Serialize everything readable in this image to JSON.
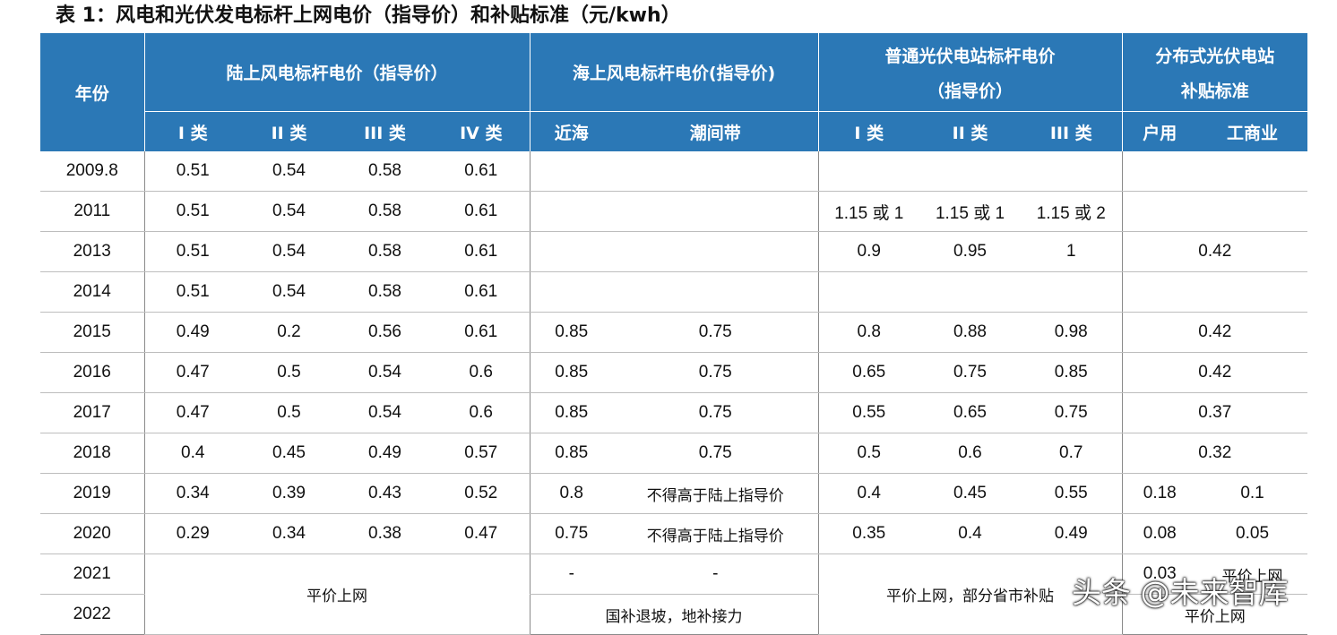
{
  "title": "表 1：风电和光伏发电标杆上网电价（指导价）和补贴标准（元/kwh）",
  "header": {
    "year": "年份",
    "onshore_wind": "陆上风电标杆电价（指导价）",
    "offshore_wind": "海上风电标杆电价(指导价)",
    "pv_line1": "普通光伏电站标杆电价",
    "pv_line2": "（指导价）",
    "dist_line1": "分布式光伏电站",
    "dist_line2": "补贴标准",
    "sub": [
      "I 类",
      "II 类",
      "III 类",
      "IV 类",
      "近海",
      "潮间带",
      "I 类",
      "II 类",
      "III 类",
      "户用",
      "工商业"
    ]
  },
  "rows": [
    [
      "2009.8",
      "0.51",
      "0.54",
      "0.58",
      "0.61",
      "",
      "",
      "",
      "",
      "",
      ""
    ],
    [
      "2011",
      "0.51",
      "0.54",
      "0.58",
      "0.61",
      "",
      "",
      "1.15 或 1",
      "1.15 或 1",
      "1.15 或 2",
      ""
    ],
    [
      "2013",
      "0.51",
      "0.54",
      "0.58",
      "0.61",
      "",
      "",
      "0.9",
      "0.95",
      "1",
      "0.42"
    ],
    [
      "2014",
      "0.51",
      "0.54",
      "0.58",
      "0.61",
      "",
      "",
      "",
      "",
      "",
      ""
    ],
    [
      "2015",
      "0.49",
      "0.2",
      "0.56",
      "0.61",
      "0.85",
      "0.75",
      "0.8",
      "0.88",
      "0.98",
      "0.42"
    ],
    [
      "2016",
      "0.47",
      "0.5",
      "0.54",
      "0.6",
      "0.85",
      "0.75",
      "0.65",
      "0.75",
      "0.85",
      "0.42"
    ],
    [
      "2017",
      "0.47",
      "0.5",
      "0.54",
      "0.6",
      "0.85",
      "0.75",
      "0.55",
      "0.65",
      "0.75",
      "0.37"
    ],
    [
      "2018",
      "0.4",
      "0.45",
      "0.49",
      "0.57",
      "0.85",
      "0.75",
      "0.5",
      "0.6",
      "0.7",
      "0.32"
    ],
    [
      "2019",
      "0.34",
      "0.39",
      "0.43",
      "0.52",
      "0.8",
      "不得高于陆上指导价",
      "0.4",
      "0.45",
      "0.55",
      "0.18",
      "0.1"
    ],
    [
      "2020",
      "0.29",
      "0.34",
      "0.38",
      "0.47",
      "0.75",
      "不得高于陆上指导价",
      "0.35",
      "0.4",
      "0.49",
      "0.08",
      "0.05"
    ]
  ],
  "row_2021": {
    "year": "2021",
    "offshore_near": "-",
    "offshore_tidal": "-",
    "dist_household": "0.03",
    "dist_commercial": "平价上网"
  },
  "row_2022": {
    "year": "2022",
    "offshore": "国补退坡，地补接力",
    "dist": "平价上网"
  },
  "merged": {
    "wind_2021_2022": "平价上网",
    "pv_2021_2022": "平价上网，部分省市补贴"
  },
  "watermark": "头条 @未来智库"
}
